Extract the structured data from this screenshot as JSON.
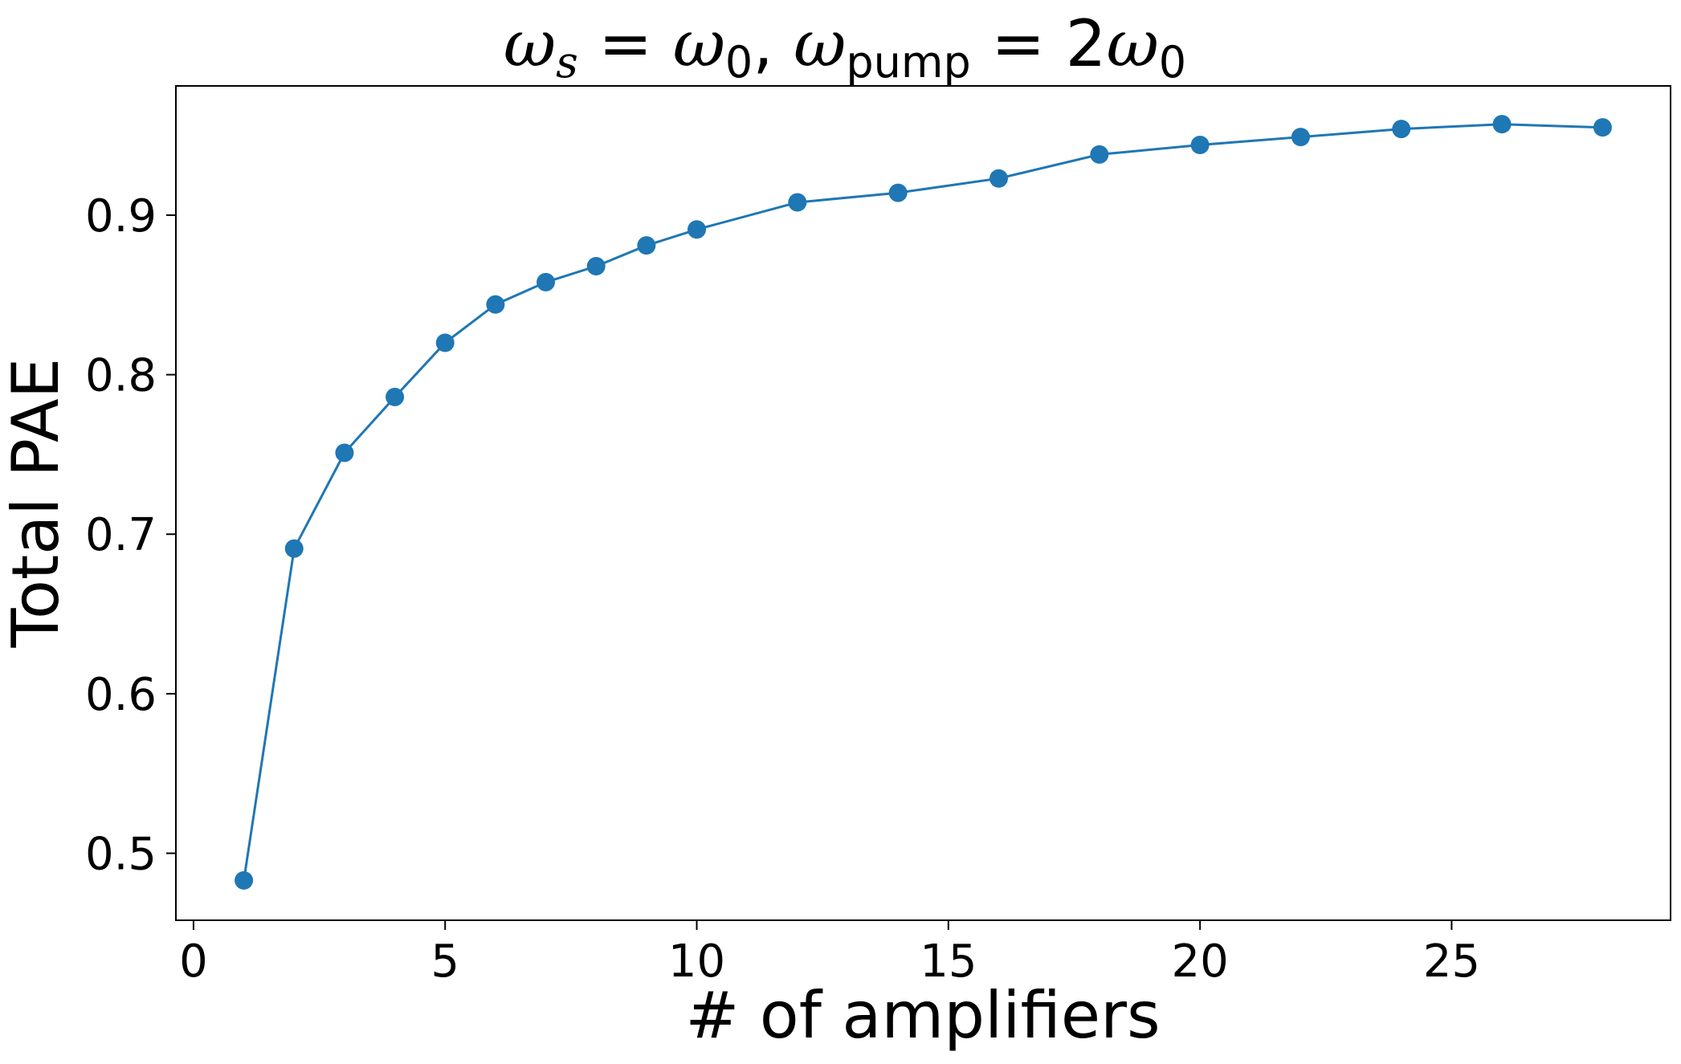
{
  "chart_data": {
    "type": "line",
    "title": {
      "omega": "ω",
      "s_sub": "s",
      "equals": " = ",
      "zero_sub": "0",
      "comma": ", ",
      "pump_sub": "pump",
      "two": "2"
    },
    "xlabel": "# of amplifiers",
    "ylabel": "Total PAE",
    "xlim": [
      -0.35,
      29.35
    ],
    "ylim": [
      0.458,
      0.981
    ],
    "xticks": [
      0,
      5,
      10,
      15,
      20,
      25
    ],
    "yticks": [
      0.5,
      0.6,
      0.7,
      0.8,
      0.9
    ],
    "ytick_labels": [
      "0.5",
      "0.6",
      "0.7",
      "0.8",
      "0.9"
    ],
    "grid": false,
    "color": "#1f77b4",
    "marker": "circle",
    "x": [
      1,
      2,
      3,
      4,
      5,
      6,
      7,
      8,
      9,
      10,
      12,
      14,
      16,
      18,
      20,
      22,
      24,
      26,
      28
    ],
    "y": [
      0.483,
      0.691,
      0.751,
      0.786,
      0.82,
      0.844,
      0.858,
      0.868,
      0.881,
      0.891,
      0.908,
      0.914,
      0.923,
      0.938,
      0.944,
      0.949,
      0.954,
      0.957,
      0.955
    ]
  }
}
